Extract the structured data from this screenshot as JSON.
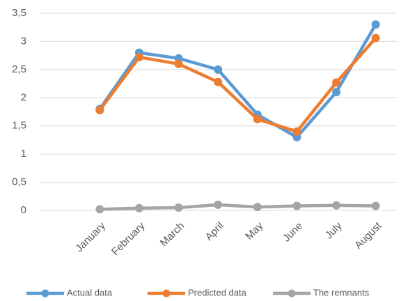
{
  "chart_data": {
    "type": "line",
    "categories": [
      "January",
      "February",
      "March",
      "April",
      "May",
      "June",
      "July",
      "August"
    ],
    "series": [
      {
        "name": "Actual data",
        "color": "#5b9bd5",
        "values": [
          1.8,
          2.8,
          2.7,
          2.5,
          1.7,
          1.3,
          2.1,
          3.3
        ]
      },
      {
        "name": "Predicted data",
        "color": "#ed7d31",
        "values": [
          1.78,
          2.72,
          2.6,
          2.28,
          1.62,
          1.4,
          2.27,
          3.06
        ]
      },
      {
        "name": "The remnants",
        "color": "#a5a5a5",
        "values": [
          0.02,
          0.04,
          0.05,
          0.1,
          0.06,
          0.08,
          0.09,
          0.08
        ]
      }
    ],
    "ylim": [
      0,
      3.5
    ],
    "yticks": [
      0,
      {
        "value": 0.5,
        "label": "0,5"
      },
      1,
      {
        "value": 1.5,
        "label": "1,5"
      },
      2,
      {
        "value": 2.5,
        "label": "2,5"
      },
      3,
      {
        "value": 3.5,
        "label": "3,5"
      }
    ],
    "grid": true,
    "legend": "bottom"
  }
}
